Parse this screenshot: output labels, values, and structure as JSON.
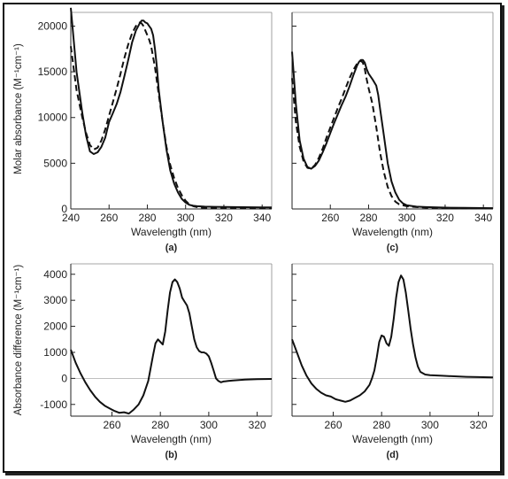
{
  "chart_data": [
    {
      "id": "a",
      "type": "line",
      "panel_label": "(a)",
      "xlabel": "Wavelength (nm)",
      "ylabel": "Molar absorbance (M⁻¹cm⁻¹)",
      "xlim": [
        240,
        345
      ],
      "ylim": [
        0,
        21500
      ],
      "xticks": [
        240,
        260,
        280,
        300,
        320,
        340
      ],
      "yticks": [
        0,
        5000,
        10000,
        15000,
        20000
      ],
      "series": [
        {
          "style": "solid",
          "x": [
            240,
            243,
            246,
            248,
            250,
            252,
            254,
            256,
            258,
            260,
            262,
            264,
            266,
            268,
            270,
            272,
            274,
            276,
            277,
            278,
            279,
            280,
            281,
            282,
            283,
            284,
            285,
            286,
            288,
            290,
            292,
            294,
            296,
            298,
            300,
            302,
            304,
            306,
            310,
            315,
            320,
            325,
            330,
            335,
            340,
            345
          ],
          "y": [
            22000,
            15000,
            10500,
            8000,
            6300,
            6000,
            6200,
            6800,
            7800,
            9500,
            10500,
            11500,
            12800,
            14500,
            16300,
            18200,
            19500,
            20300,
            20600,
            20600,
            20400,
            20300,
            20000,
            19700,
            19000,
            17500,
            15500,
            13000,
            9500,
            6500,
            4200,
            2800,
            1800,
            1100,
            700,
            450,
            350,
            300,
            250,
            230,
            220,
            200,
            190,
            180,
            170,
            160
          ]
        },
        {
          "style": "dashed",
          "x": [
            240,
            243,
            246,
            248,
            250,
            252,
            254,
            256,
            258,
            260,
            262,
            264,
            266,
            268,
            270,
            272,
            274,
            276,
            277,
            278,
            279,
            280,
            281,
            282,
            284,
            286,
            288,
            290,
            292,
            294,
            296,
            298,
            300,
            302,
            304,
            306,
            310,
            320,
            330,
            340,
            345
          ],
          "y": [
            17800,
            13000,
            10000,
            8300,
            7000,
            6500,
            6700,
            7500,
            8700,
            10200,
            11700,
            13200,
            14800,
            16500,
            18000,
            19200,
            20000,
            20400,
            20300,
            20000,
            19500,
            19000,
            18500,
            17800,
            15500,
            12500,
            9500,
            6800,
            4800,
            3400,
            2300,
            1500,
            900,
            500,
            300,
            200,
            120,
            80,
            60,
            50,
            50
          ]
        }
      ]
    },
    {
      "id": "c",
      "type": "line",
      "panel_label": "(c)",
      "xlabel": "Wavelength (nm)",
      "ylabel": "",
      "xlim": [
        240,
        345
      ],
      "ylim": [
        0,
        21500
      ],
      "xticks": [
        260,
        280,
        300,
        320,
        340
      ],
      "yticks": [
        0,
        5000,
        10000,
        15000,
        20000
      ],
      "series": [
        {
          "style": "solid",
          "x": [
            240,
            242,
            244,
            246,
            248,
            250,
            252,
            254,
            256,
            258,
            260,
            262,
            264,
            266,
            268,
            270,
            272,
            274,
            275,
            276,
            277,
            278,
            279,
            280,
            282,
            284,
            285,
            286,
            288,
            290,
            292,
            294,
            296,
            298,
            300,
            305,
            310,
            320,
            330,
            340,
            345
          ],
          "y": [
            17200,
            11500,
            7500,
            5500,
            4600,
            4400,
            4700,
            5300,
            6200,
            7200,
            8300,
            9400,
            10400,
            11400,
            12300,
            13400,
            14600,
            15700,
            16100,
            16300,
            16300,
            16000,
            15300,
            14800,
            14200,
            13500,
            12500,
            11000,
            8000,
            5000,
            3000,
            1800,
            1000,
            600,
            400,
            250,
            200,
            150,
            120,
            100,
            90
          ]
        },
        {
          "style": "dashed",
          "x": [
            240,
            242,
            244,
            246,
            248,
            250,
            252,
            254,
            256,
            258,
            260,
            262,
            264,
            266,
            268,
            270,
            272,
            274,
            275,
            276,
            277,
            278,
            279,
            280,
            282,
            284,
            286,
            288,
            290,
            292,
            294,
            296,
            300,
            305,
            310,
            320,
            330,
            340,
            345
          ],
          "y": [
            14300,
            9500,
            6800,
            5200,
            4500,
            4400,
            4800,
            5600,
            6600,
            7800,
            8900,
            10000,
            11100,
            12100,
            13200,
            14300,
            15200,
            15900,
            16100,
            16200,
            16000,
            15300,
            14200,
            13200,
            11500,
            9000,
            6200,
            4000,
            2400,
            1400,
            800,
            500,
            300,
            200,
            150,
            100,
            80,
            70,
            60
          ]
        }
      ]
    },
    {
      "id": "b",
      "type": "line",
      "panel_label": "(b)",
      "xlabel": "Wavelength (nm)",
      "ylabel": "Absorbance difference (M⁻¹cm⁻¹)",
      "xlim": [
        243,
        326
      ],
      "ylim": [
        -1450,
        4400
      ],
      "xticks": [
        260,
        280,
        300,
        320
      ],
      "yticks": [
        -1000,
        0,
        1000,
        2000,
        3000,
        4000
      ],
      "series": [
        {
          "style": "solid",
          "x": [
            243,
            245,
            247,
            249,
            251,
            253,
            255,
            257,
            259,
            261,
            263,
            265,
            267,
            269,
            271,
            273,
            275,
            277,
            278,
            279,
            280,
            281,
            282,
            283,
            284,
            285,
            286,
            287,
            288,
            289,
            290,
            291,
            292,
            293,
            294,
            295,
            296,
            297,
            298,
            299,
            300,
            301,
            302,
            303,
            304,
            305,
            306,
            308,
            310,
            315,
            320,
            326
          ],
          "y": [
            1100,
            600,
            200,
            -150,
            -450,
            -700,
            -900,
            -1050,
            -1150,
            -1250,
            -1320,
            -1300,
            -1350,
            -1200,
            -1000,
            -650,
            -100,
            900,
            1350,
            1500,
            1400,
            1300,
            1800,
            2600,
            3300,
            3700,
            3800,
            3700,
            3450,
            3100,
            2950,
            2800,
            2500,
            2000,
            1500,
            1200,
            1050,
            1000,
            1000,
            950,
            850,
            600,
            300,
            0,
            -100,
            -150,
            -120,
            -100,
            -80,
            -50,
            -30,
            -20
          ]
        }
      ]
    },
    {
      "id": "d",
      "type": "line",
      "panel_label": "(d)",
      "xlabel": "Wavelength (nm)",
      "ylabel": "",
      "xlim": [
        243,
        326
      ],
      "ylim": [
        -1450,
        4400
      ],
      "xticks": [
        260,
        280,
        300,
        320
      ],
      "yticks": [
        -1000,
        0,
        1000,
        2000,
        3000,
        4000
      ],
      "series": [
        {
          "style": "solid",
          "x": [
            243,
            245,
            247,
            249,
            251,
            253,
            255,
            257,
            259,
            261,
            263,
            265,
            267,
            269,
            271,
            273,
            275,
            276,
            277,
            278,
            279,
            280,
            281,
            282,
            283,
            284,
            285,
            286,
            287,
            288,
            289,
            290,
            291,
            292,
            293,
            294,
            295,
            296,
            298,
            300,
            305,
            310,
            315,
            320,
            326
          ],
          "y": [
            1500,
            1000,
            500,
            100,
            -200,
            -400,
            -550,
            -650,
            -700,
            -800,
            -850,
            -900,
            -850,
            -750,
            -650,
            -500,
            -250,
            0,
            300,
            800,
            1400,
            1650,
            1600,
            1350,
            1250,
            1600,
            2300,
            3100,
            3700,
            3950,
            3800,
            3300,
            2600,
            1900,
            1300,
            800,
            450,
            250,
            150,
            120,
            100,
            80,
            60,
            50,
            40
          ]
        }
      ]
    }
  ]
}
